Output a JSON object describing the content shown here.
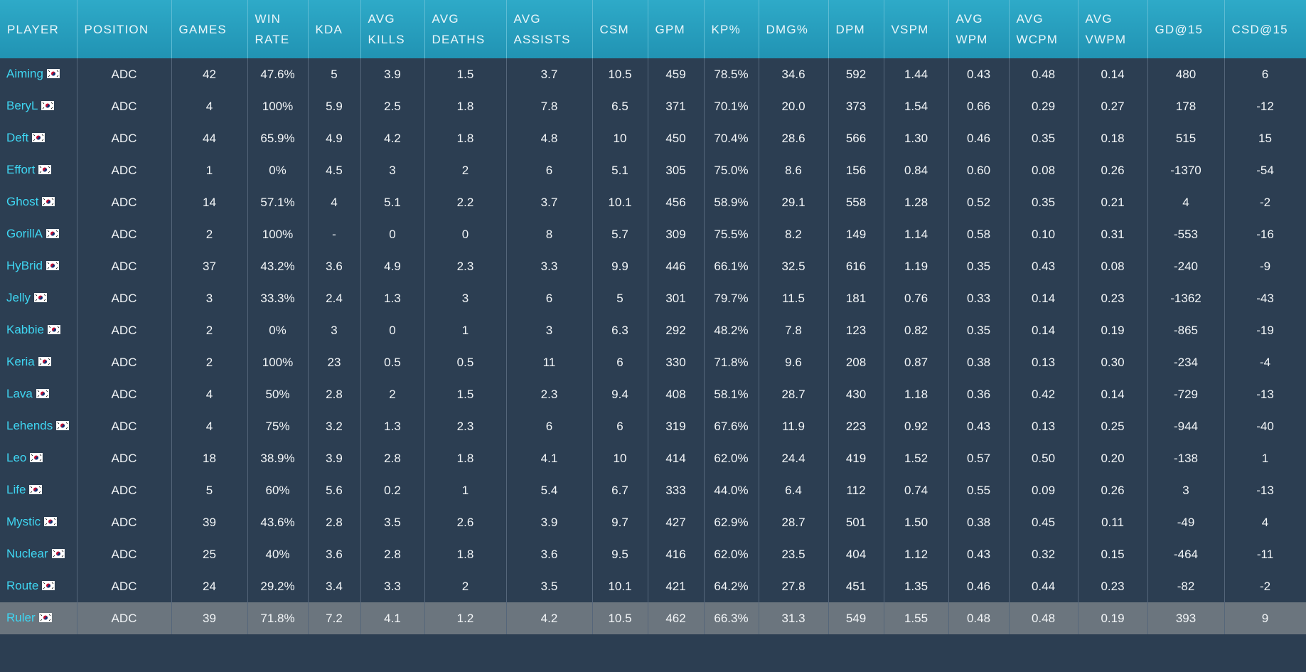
{
  "table": {
    "header": [
      "PLAYER",
      "POSITION",
      "GAMES",
      "WIN RATE",
      "KDA",
      "AVG KILLS",
      "AVG DEATHS",
      "AVG ASSISTS",
      "CSM",
      "GPM",
      "KP%",
      "DMG%",
      "DPM",
      "VSPM",
      "AVG WPM",
      "AVG WCPM",
      "AVG VWPM",
      "GD@15",
      "CSD@15"
    ],
    "rows": [
      [
        "Aiming",
        "ADC",
        "42",
        "47.6%",
        "5",
        "3.9",
        "1.5",
        "3.7",
        "10.5",
        "459",
        "78.5%",
        "34.6",
        "592",
        "1.44",
        "0.43",
        "0.48",
        "0.14",
        "480",
        "6"
      ],
      [
        "BeryL",
        "ADC",
        "4",
        "100%",
        "5.9",
        "2.5",
        "1.8",
        "7.8",
        "6.5",
        "371",
        "70.1%",
        "20.0",
        "373",
        "1.54",
        "0.66",
        "0.29",
        "0.27",
        "178",
        "-12"
      ],
      [
        "Deft",
        "ADC",
        "44",
        "65.9%",
        "4.9",
        "4.2",
        "1.8",
        "4.8",
        "10",
        "450",
        "70.4%",
        "28.6",
        "566",
        "1.30",
        "0.46",
        "0.35",
        "0.18",
        "515",
        "15"
      ],
      [
        "Effort",
        "ADC",
        "1",
        "0%",
        "4.5",
        "3",
        "2",
        "6",
        "5.1",
        "305",
        "75.0%",
        "8.6",
        "156",
        "0.84",
        "0.60",
        "0.08",
        "0.26",
        "-1370",
        "-54"
      ],
      [
        "Ghost",
        "ADC",
        "14",
        "57.1%",
        "4",
        "5.1",
        "2.2",
        "3.7",
        "10.1",
        "456",
        "58.9%",
        "29.1",
        "558",
        "1.28",
        "0.52",
        "0.35",
        "0.21",
        "4",
        "-2"
      ],
      [
        "GorillA",
        "ADC",
        "2",
        "100%",
        "-",
        "0",
        "0",
        "8",
        "5.7",
        "309",
        "75.5%",
        "8.2",
        "149",
        "1.14",
        "0.58",
        "0.10",
        "0.31",
        "-553",
        "-16"
      ],
      [
        "HyBrid",
        "ADC",
        "37",
        "43.2%",
        "3.6",
        "4.9",
        "2.3",
        "3.3",
        "9.9",
        "446",
        "66.1%",
        "32.5",
        "616",
        "1.19",
        "0.35",
        "0.43",
        "0.08",
        "-240",
        "-9"
      ],
      [
        "Jelly",
        "ADC",
        "3",
        "33.3%",
        "2.4",
        "1.3",
        "3",
        "6",
        "5",
        "301",
        "79.7%",
        "11.5",
        "181",
        "0.76",
        "0.33",
        "0.14",
        "0.23",
        "-1362",
        "-43"
      ],
      [
        "Kabbie",
        "ADC",
        "2",
        "0%",
        "3",
        "0",
        "1",
        "3",
        "6.3",
        "292",
        "48.2%",
        "7.8",
        "123",
        "0.82",
        "0.35",
        "0.14",
        "0.19",
        "-865",
        "-19"
      ],
      [
        "Keria",
        "ADC",
        "2",
        "100%",
        "23",
        "0.5",
        "0.5",
        "11",
        "6",
        "330",
        "71.8%",
        "9.6",
        "208",
        "0.87",
        "0.38",
        "0.13",
        "0.30",
        "-234",
        "-4"
      ],
      [
        "Lava",
        "ADC",
        "4",
        "50%",
        "2.8",
        "2",
        "1.5",
        "2.3",
        "9.4",
        "408",
        "58.1%",
        "28.7",
        "430",
        "1.18",
        "0.36",
        "0.42",
        "0.14",
        "-729",
        "-13"
      ],
      [
        "Lehends",
        "ADC",
        "4",
        "75%",
        "3.2",
        "1.3",
        "2.3",
        "6",
        "6",
        "319",
        "67.6%",
        "11.9",
        "223",
        "0.92",
        "0.43",
        "0.13",
        "0.25",
        "-944",
        "-40"
      ],
      [
        "Leo",
        "ADC",
        "18",
        "38.9%",
        "3.9",
        "2.8",
        "1.8",
        "4.1",
        "10",
        "414",
        "62.0%",
        "24.4",
        "419",
        "1.52",
        "0.57",
        "0.50",
        "0.20",
        "-138",
        "1"
      ],
      [
        "Life",
        "ADC",
        "5",
        "60%",
        "5.6",
        "0.2",
        "1",
        "5.4",
        "6.7",
        "333",
        "44.0%",
        "6.4",
        "112",
        "0.74",
        "0.55",
        "0.09",
        "0.26",
        "3",
        "-13"
      ],
      [
        "Mystic",
        "ADC",
        "39",
        "43.6%",
        "2.8",
        "3.5",
        "2.6",
        "3.9",
        "9.7",
        "427",
        "62.9%",
        "28.7",
        "501",
        "1.50",
        "0.38",
        "0.45",
        "0.11",
        "-49",
        "4"
      ],
      [
        "Nuclear",
        "ADC",
        "25",
        "40%",
        "3.6",
        "2.8",
        "1.8",
        "3.6",
        "9.5",
        "416",
        "62.0%",
        "23.5",
        "404",
        "1.12",
        "0.43",
        "0.32",
        "0.15",
        "-464",
        "-11"
      ],
      [
        "Route",
        "ADC",
        "24",
        "29.2%",
        "3.4",
        "3.3",
        "2",
        "3.5",
        "10.1",
        "421",
        "64.2%",
        "27.8",
        "451",
        "1.35",
        "0.46",
        "0.44",
        "0.23",
        "-82",
        "-2"
      ],
      [
        "Ruler",
        "ADC",
        "39",
        "71.8%",
        "7.2",
        "4.1",
        "1.2",
        "4.2",
        "10.5",
        "462",
        "66.3%",
        "31.3",
        "549",
        "1.55",
        "0.48",
        "0.48",
        "0.19",
        "393",
        "9"
      ]
    ]
  }
}
